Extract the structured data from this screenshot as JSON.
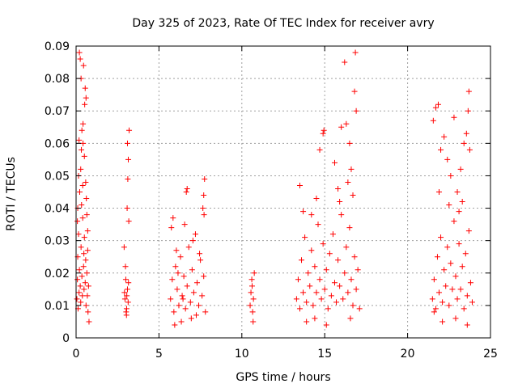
{
  "chart_data": {
    "type": "scatter",
    "title": "Day 325 of 2023, Rate Of TEC Index for receiver avry",
    "xlabel": "GPS time / hours",
    "ylabel": "ROTI / TECUs",
    "xlim": [
      0,
      25
    ],
    "ylim": [
      0,
      0.09
    ],
    "x_ticks": [
      0,
      5,
      10,
      15,
      20,
      25
    ],
    "y_ticks": [
      0,
      0.01,
      0.02,
      0.03,
      0.04,
      0.05,
      0.06,
      0.07,
      0.08,
      0.09
    ],
    "x_tick_labels": [
      "0",
      "5",
      "10",
      "15",
      "20",
      "25"
    ],
    "y_tick_labels": [
      "0",
      "0.01",
      "0.02",
      "0.03",
      "0.04",
      "0.05",
      "0.06",
      "0.07",
      "0.08",
      "0.09"
    ],
    "grid": true,
    "marker": "+",
    "color": "#ff0000",
    "series": [
      {
        "points": [
          [
            0.05,
            0.012
          ],
          [
            0.08,
            0.018
          ],
          [
            0.1,
            0.025
          ],
          [
            0.12,
            0.009
          ],
          [
            0.15,
            0.032
          ],
          [
            0.18,
            0.014
          ],
          [
            0.2,
            0.021
          ],
          [
            0.22,
            0.045
          ],
          [
            0.25,
            0.016
          ],
          [
            0.28,
            0.011
          ],
          [
            0.3,
            0.028
          ],
          [
            0.32,
            0.058
          ],
          [
            0.35,
            0.019
          ],
          [
            0.38,
            0.013
          ],
          [
            0.4,
            0.037
          ],
          [
            0.42,
            0.066
          ],
          [
            0.45,
            0.022
          ],
          [
            0.48,
            0.015
          ],
          [
            0.5,
            0.031
          ],
          [
            0.52,
            0.072
          ],
          [
            0.55,
            0.017
          ],
          [
            0.58,
            0.024
          ],
          [
            0.6,
            0.01
          ],
          [
            0.62,
            0.043
          ],
          [
            0.65,
            0.02
          ],
          [
            0.68,
            0.013
          ],
          [
            0.7,
            0.027
          ],
          [
            0.72,
            0.008
          ],
          [
            0.75,
            0.016
          ],
          [
            0.78,
            0.005
          ],
          [
            0.2,
            0.088
          ],
          [
            0.25,
            0.086
          ],
          [
            0.45,
            0.084
          ],
          [
            0.3,
            0.08
          ],
          [
            0.55,
            0.077
          ],
          [
            0.6,
            0.074
          ],
          [
            0.35,
            0.064
          ],
          [
            0.5,
            0.056
          ],
          [
            0.15,
            0.05
          ],
          [
            0.4,
            0.047
          ],
          [
            0.1,
            0.04
          ],
          [
            0.65,
            0.038
          ],
          [
            0.7,
            0.033
          ],
          [
            0.28,
            0.052
          ],
          [
            0.18,
            0.061
          ],
          [
            0.42,
            0.06
          ],
          [
            0.58,
            0.048
          ],
          [
            0.33,
            0.041
          ],
          [
            0.08,
            0.036
          ],
          [
            0.47,
            0.026
          ],
          [
            2.9,
            0.028
          ],
          [
            2.95,
            0.012
          ],
          [
            3.0,
            0.018
          ],
          [
            3.05,
            0.009
          ],
          [
            3.1,
            0.015
          ],
          [
            3.15,
            0.055
          ],
          [
            3.2,
            0.064
          ],
          [
            3.12,
            0.049
          ],
          [
            3.08,
            0.04
          ],
          [
            3.18,
            0.036
          ],
          [
            2.98,
            0.022
          ],
          [
            3.02,
            0.008
          ],
          [
            3.06,
            0.013
          ],
          [
            3.14,
            0.011
          ],
          [
            3.16,
            0.017
          ],
          [
            3.04,
            0.007
          ],
          [
            2.92,
            0.014
          ],
          [
            3.1,
            0.06
          ],
          [
            5.7,
            0.012
          ],
          [
            5.8,
            0.018
          ],
          [
            5.9,
            0.008
          ],
          [
            6.0,
            0.022
          ],
          [
            6.1,
            0.015
          ],
          [
            6.2,
            0.01
          ],
          [
            6.3,
            0.025
          ],
          [
            6.4,
            0.013
          ],
          [
            6.5,
            0.019
          ],
          [
            6.6,
            0.009
          ],
          [
            6.7,
            0.016
          ],
          [
            6.8,
            0.028
          ],
          [
            6.9,
            0.011
          ],
          [
            7.0,
            0.021
          ],
          [
            7.1,
            0.014
          ],
          [
            7.2,
            0.032
          ],
          [
            7.3,
            0.017
          ],
          [
            7.4,
            0.01
          ],
          [
            7.5,
            0.024
          ],
          [
            7.6,
            0.013
          ],
          [
            7.7,
            0.019
          ],
          [
            7.8,
            0.008
          ],
          [
            5.75,
            0.034
          ],
          [
            5.85,
            0.037
          ],
          [
            6.05,
            0.027
          ],
          [
            6.55,
            0.035
          ],
          [
            6.65,
            0.045
          ],
          [
            6.7,
            0.046
          ],
          [
            7.05,
            0.03
          ],
          [
            7.45,
            0.026
          ],
          [
            7.65,
            0.04
          ],
          [
            7.7,
            0.044
          ],
          [
            7.75,
            0.049
          ],
          [
            7.72,
            0.038
          ],
          [
            6.35,
            0.005
          ],
          [
            6.95,
            0.006
          ],
          [
            5.95,
            0.004
          ],
          [
            7.25,
            0.007
          ],
          [
            6.15,
            0.02
          ],
          [
            6.45,
            0.012
          ],
          [
            10.5,
            0.01
          ],
          [
            10.55,
            0.014
          ],
          [
            10.6,
            0.018
          ],
          [
            10.65,
            0.008
          ],
          [
            10.7,
            0.012
          ],
          [
            10.75,
            0.02
          ],
          [
            10.68,
            0.005
          ],
          [
            10.62,
            0.016
          ],
          [
            13.3,
            0.012
          ],
          [
            13.4,
            0.018
          ],
          [
            13.5,
            0.009
          ],
          [
            13.6,
            0.024
          ],
          [
            13.7,
            0.014
          ],
          [
            13.8,
            0.031
          ],
          [
            13.9,
            0.011
          ],
          [
            14.0,
            0.02
          ],
          [
            14.1,
            0.016
          ],
          [
            14.2,
            0.027
          ],
          [
            14.3,
            0.01
          ],
          [
            14.4,
            0.022
          ],
          [
            14.5,
            0.014
          ],
          [
            14.6,
            0.035
          ],
          [
            14.7,
            0.018
          ],
          [
            14.8,
            0.012
          ],
          [
            14.9,
            0.029
          ],
          [
            15.0,
            0.015
          ],
          [
            15.1,
            0.021
          ],
          [
            15.2,
            0.009
          ],
          [
            15.3,
            0.026
          ],
          [
            15.4,
            0.013
          ],
          [
            15.5,
            0.032
          ],
          [
            15.6,
            0.017
          ],
          [
            15.7,
            0.011
          ],
          [
            15.8,
            0.024
          ],
          [
            15.9,
            0.016
          ],
          [
            16.0,
            0.038
          ],
          [
            16.1,
            0.012
          ],
          [
            16.2,
            0.02
          ],
          [
            16.3,
            0.028
          ],
          [
            16.4,
            0.014
          ],
          [
            16.5,
            0.034
          ],
          [
            16.6,
            0.018
          ],
          [
            16.7,
            0.01
          ],
          [
            16.8,
            0.025
          ],
          [
            16.9,
            0.015
          ],
          [
            17.0,
            0.021
          ],
          [
            17.1,
            0.009
          ],
          [
            13.5,
            0.047
          ],
          [
            13.7,
            0.039
          ],
          [
            14.9,
            0.063
          ],
          [
            14.95,
            0.064
          ],
          [
            14.7,
            0.058
          ],
          [
            15.6,
            0.054
          ],
          [
            15.8,
            0.046
          ],
          [
            16.0,
            0.065
          ],
          [
            16.2,
            0.085
          ],
          [
            16.3,
            0.066
          ],
          [
            16.5,
            0.06
          ],
          [
            16.6,
            0.052
          ],
          [
            16.7,
            0.044
          ],
          [
            16.8,
            0.076
          ],
          [
            16.85,
            0.088
          ],
          [
            16.9,
            0.07
          ],
          [
            16.4,
            0.048
          ],
          [
            15.9,
            0.042
          ],
          [
            14.5,
            0.043
          ],
          [
            14.2,
            0.038
          ],
          [
            16.55,
            0.006
          ],
          [
            15.1,
            0.004
          ],
          [
            13.9,
            0.005
          ],
          [
            14.4,
            0.006
          ],
          [
            21.5,
            0.012
          ],
          [
            21.6,
            0.018
          ],
          [
            21.7,
            0.009
          ],
          [
            21.8,
            0.025
          ],
          [
            21.9,
            0.014
          ],
          [
            22.0,
            0.031
          ],
          [
            22.1,
            0.011
          ],
          [
            22.2,
            0.021
          ],
          [
            22.3,
            0.016
          ],
          [
            22.4,
            0.028
          ],
          [
            22.5,
            0.01
          ],
          [
            22.6,
            0.023
          ],
          [
            22.7,
            0.015
          ],
          [
            22.8,
            0.036
          ],
          [
            22.9,
            0.019
          ],
          [
            23.0,
            0.012
          ],
          [
            23.1,
            0.029
          ],
          [
            23.2,
            0.015
          ],
          [
            23.3,
            0.022
          ],
          [
            23.4,
            0.009
          ],
          [
            23.5,
            0.026
          ],
          [
            23.6,
            0.013
          ],
          [
            23.7,
            0.033
          ],
          [
            23.8,
            0.017
          ],
          [
            23.9,
            0.011
          ],
          [
            21.55,
            0.067
          ],
          [
            21.7,
            0.071
          ],
          [
            21.85,
            0.072
          ],
          [
            22.0,
            0.058
          ],
          [
            22.2,
            0.062
          ],
          [
            22.4,
            0.055
          ],
          [
            22.6,
            0.05
          ],
          [
            22.8,
            0.068
          ],
          [
            23.0,
            0.045
          ],
          [
            23.2,
            0.052
          ],
          [
            23.4,
            0.06
          ],
          [
            23.55,
            0.063
          ],
          [
            23.65,
            0.07
          ],
          [
            23.7,
            0.076
          ],
          [
            23.75,
            0.058
          ],
          [
            21.9,
            0.045
          ],
          [
            22.5,
            0.041
          ],
          [
            23.1,
            0.039
          ],
          [
            23.3,
            0.042
          ],
          [
            22.1,
            0.005
          ],
          [
            22.9,
            0.006
          ],
          [
            23.6,
            0.004
          ],
          [
            21.6,
            0.008
          ]
        ]
      }
    ]
  }
}
